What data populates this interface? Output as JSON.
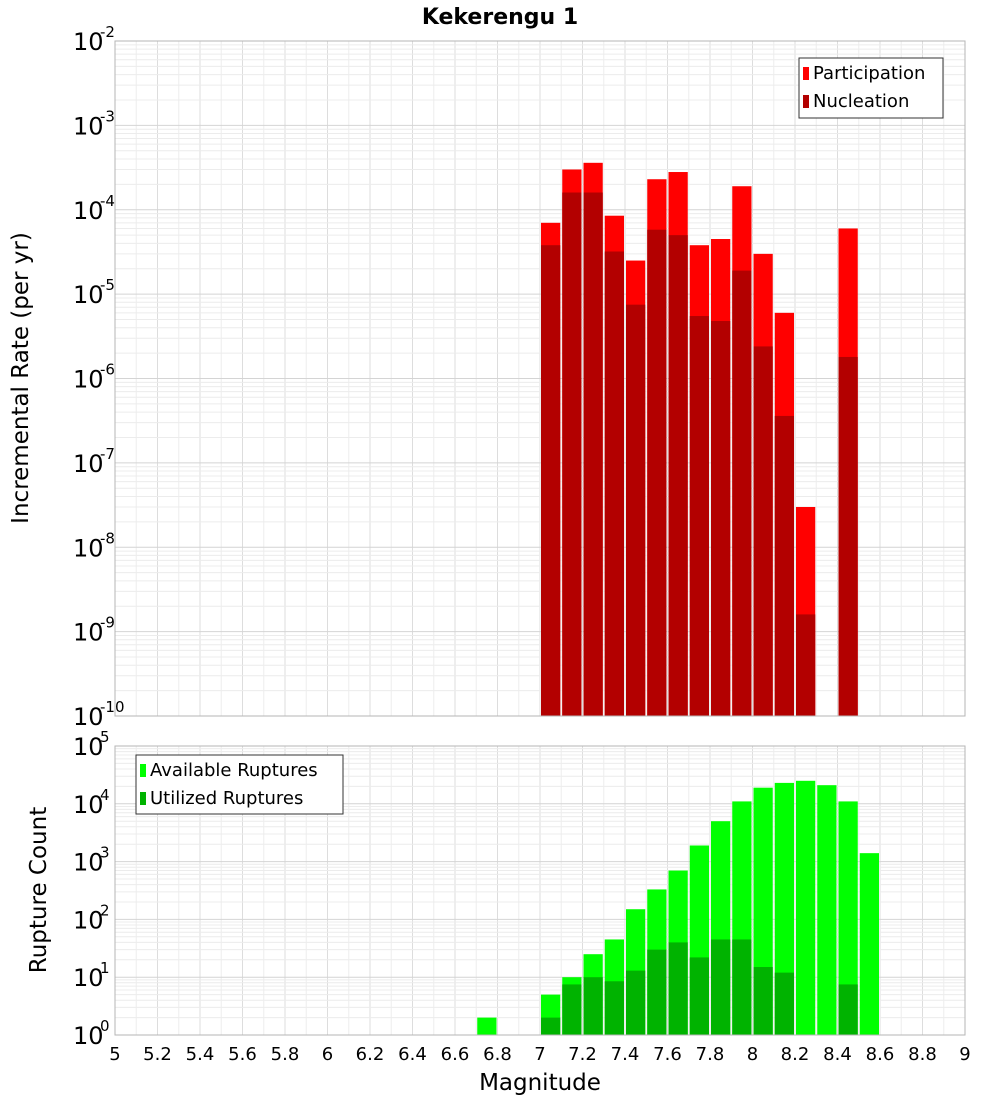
{
  "chart_data": [
    {
      "type": "bar",
      "title": "Kekerengu 1",
      "xlabel": "Magnitude",
      "ylabel": "Incremental Rate (per yr)",
      "yscale": "log",
      "xlim": [
        5,
        9
      ],
      "ylim_exponents": [
        -10,
        -2
      ],
      "bin_width": 0.1,
      "y_ticks": [
        {
          "base": "10",
          "exp": "-2"
        },
        {
          "base": "10",
          "exp": "-3"
        },
        {
          "base": "10",
          "exp": "-4"
        },
        {
          "base": "10",
          "exp": "-5"
        },
        {
          "base": "10",
          "exp": "-6"
        },
        {
          "base": "10",
          "exp": "-7"
        },
        {
          "base": "10",
          "exp": "-8"
        },
        {
          "base": "10",
          "exp": "-9"
        },
        {
          "base": "10",
          "exp": "-10"
        }
      ],
      "legend_position": "top-right",
      "series": [
        {
          "name": "Participation",
          "color": "#ff0000",
          "x": [
            7.05,
            7.15,
            7.25,
            7.35,
            7.45,
            7.55,
            7.65,
            7.75,
            7.85,
            7.95,
            8.05,
            8.15,
            8.25,
            8.45
          ],
          "values": [
            7e-05,
            0.0003,
            0.00036,
            8.5e-05,
            2.5e-05,
            0.00023,
            0.00028,
            3.8e-05,
            4.5e-05,
            0.00019,
            3e-05,
            6e-06,
            3e-08,
            6e-05
          ]
        },
        {
          "name": "Nucleation",
          "color": "#b30000",
          "x": [
            7.05,
            7.15,
            7.25,
            7.35,
            7.45,
            7.55,
            7.65,
            7.75,
            7.85,
            7.95,
            8.05,
            8.15,
            8.25,
            8.45
          ],
          "values": [
            3.8e-05,
            0.00016,
            0.00016,
            3.2e-05,
            7.5e-06,
            5.8e-05,
            5e-05,
            5.5e-06,
            4.8e-06,
            1.9e-05,
            2.4e-06,
            3.6e-07,
            1.6e-09,
            1.8e-06
          ]
        }
      ]
    },
    {
      "type": "bar",
      "title": "",
      "xlabel": "Magnitude",
      "ylabel": "Rupture Count",
      "yscale": "log",
      "xlim": [
        5,
        9
      ],
      "ylim_exponents": [
        0,
        5
      ],
      "bin_width": 0.1,
      "x_ticks": [
        "5",
        "5.2",
        "5.4",
        "5.6",
        "5.8",
        "6",
        "6.2",
        "6.4",
        "6.6",
        "6.8",
        "7",
        "7.2",
        "7.4",
        "7.6",
        "7.8",
        "8",
        "8.2",
        "8.4",
        "8.6",
        "8.8",
        "9"
      ],
      "y_ticks": [
        {
          "base": "10",
          "exp": "5"
        },
        {
          "base": "10",
          "exp": "4"
        },
        {
          "base": "10",
          "exp": "3"
        },
        {
          "base": "10",
          "exp": "2"
        },
        {
          "base": "10",
          "exp": "1"
        },
        {
          "base": "10",
          "exp": "0"
        }
      ],
      "legend_position": "top-left",
      "series": [
        {
          "name": "Available Ruptures",
          "color": "#00ff00",
          "x": [
            6.75,
            6.95,
            7.05,
            7.15,
            7.25,
            7.35,
            7.45,
            7.55,
            7.65,
            7.75,
            7.85,
            7.95,
            8.05,
            8.15,
            8.25,
            8.35,
            8.45,
            8.55
          ],
          "values": [
            2,
            1,
            5,
            10,
            25,
            45,
            150,
            330,
            700,
            1900,
            5000,
            11000,
            19000,
            23000,
            25000,
            21000,
            11000,
            1400
          ]
        },
        {
          "name": "Utilized Ruptures",
          "color": "#00b300",
          "x": [
            7.05,
            7.15,
            7.25,
            7.35,
            7.45,
            7.55,
            7.65,
            7.75,
            7.85,
            7.95,
            8.05,
            8.15,
            8.25,
            8.45
          ],
          "values": [
            2,
            7.5,
            10,
            8.5,
            13,
            30,
            40,
            22,
            45,
            45,
            15,
            12,
            1,
            7.5
          ]
        }
      ]
    }
  ]
}
